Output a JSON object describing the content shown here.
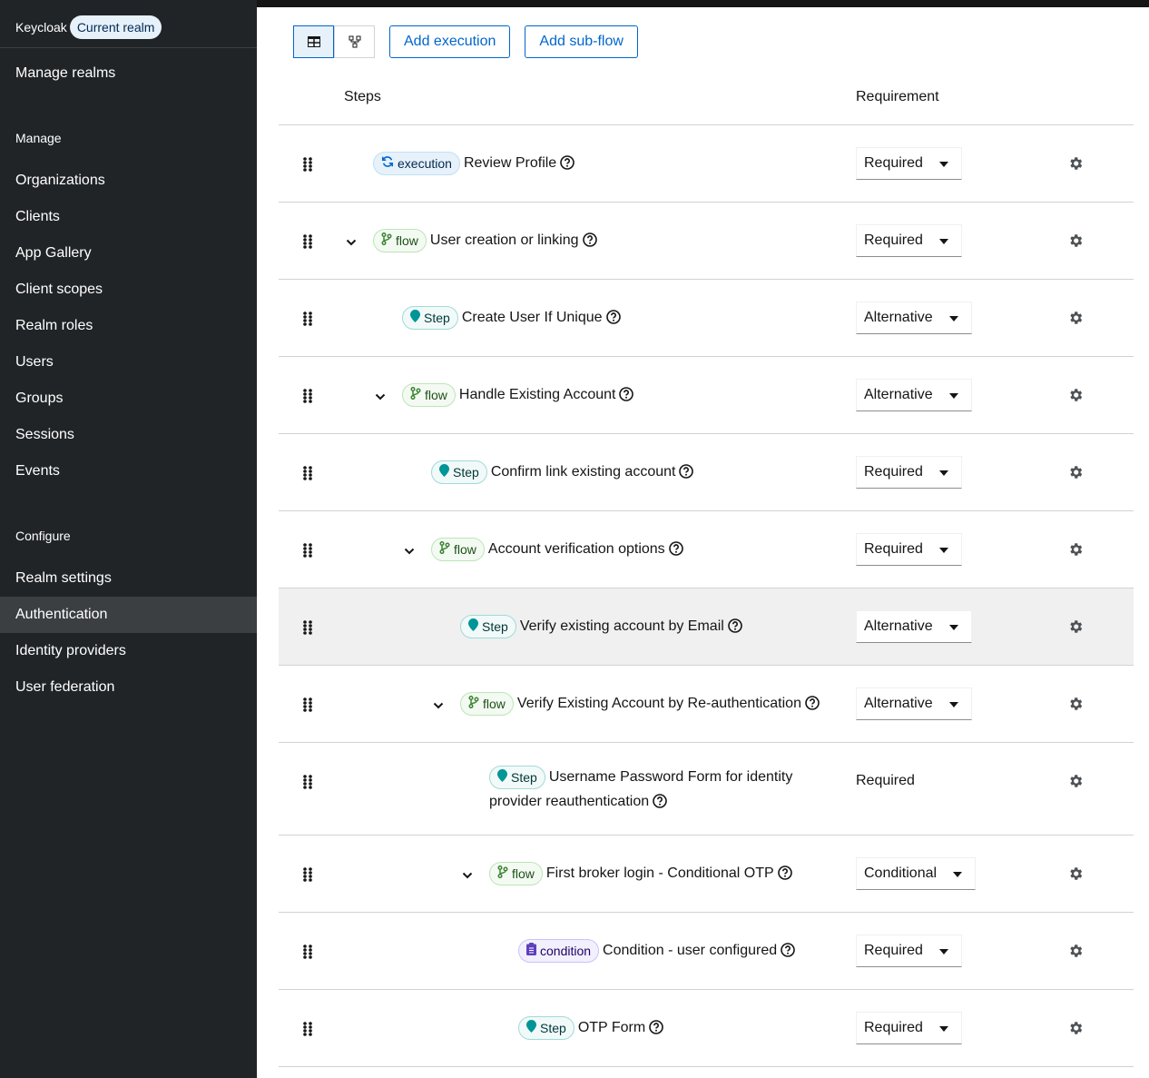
{
  "sidebar": {
    "brand": "Keycloak",
    "realm_badge": "Current realm",
    "top_link": "Manage realms",
    "sections": [
      {
        "title": "Manage",
        "items": [
          {
            "label": "Organizations"
          },
          {
            "label": "Clients"
          },
          {
            "label": "App Gallery"
          },
          {
            "label": "Client scopes"
          },
          {
            "label": "Realm roles"
          },
          {
            "label": "Users"
          },
          {
            "label": "Groups"
          },
          {
            "label": "Sessions"
          },
          {
            "label": "Events"
          }
        ]
      },
      {
        "title": "Configure",
        "items": [
          {
            "label": "Realm settings"
          },
          {
            "label": "Authentication",
            "selected": true
          },
          {
            "label": "Identity providers"
          },
          {
            "label": "User federation"
          }
        ]
      }
    ]
  },
  "toolbar": {
    "buttons": [
      "Add execution",
      "Add sub-flow"
    ]
  },
  "badge_styles": {
    "execution": {
      "bg": "#e7f1fa",
      "border": "#bee1f4",
      "text": "#002952",
      "icon_color": "#0066cc",
      "icon": "sync"
    },
    "flow": {
      "bg": "#f3faf2",
      "border": "#bde5b8",
      "text": "#1e4f18",
      "icon_color": "#3e8635",
      "icon": "branch"
    },
    "Step": {
      "bg": "#f2f9f9",
      "border": "#a2d9d9",
      "text": "#003737",
      "icon_color": "#009596",
      "icon": "pin"
    },
    "condition": {
      "bg": "#f2f0fc",
      "border": "#cbc1ff",
      "text": "#1f0066",
      "icon_color": "#5e40be",
      "icon": "clipboard"
    }
  },
  "table": {
    "headers": [
      "Steps",
      "Requirement"
    ],
    "rows": [
      {
        "badge": "execution",
        "name": "Review Profile",
        "depth": 0,
        "expandable": false,
        "requirement": "Required",
        "dropdown": true
      },
      {
        "badge": "flow",
        "name": "User creation or linking",
        "depth": 0,
        "expandable": true,
        "requirement": "Required",
        "dropdown": true
      },
      {
        "badge": "Step",
        "name": "Create User If Unique",
        "depth": 1,
        "expandable": false,
        "requirement": "Alternative",
        "dropdown": true
      },
      {
        "badge": "flow",
        "name": "Handle Existing Account",
        "depth": 1,
        "expandable": true,
        "requirement": "Alternative",
        "dropdown": true
      },
      {
        "badge": "Step",
        "name": "Confirm link existing account",
        "depth": 2,
        "expandable": false,
        "requirement": "Required",
        "dropdown": true
      },
      {
        "badge": "flow",
        "name": "Account verification options",
        "depth": 2,
        "expandable": true,
        "requirement": "Required",
        "dropdown": true
      },
      {
        "badge": "Step",
        "name": "Verify existing account by Email",
        "depth": 3,
        "expandable": false,
        "requirement": "Alternative",
        "dropdown": true,
        "highlighted": true
      },
      {
        "badge": "flow",
        "name": "Verify Existing Account by Re-authentication",
        "depth": 3,
        "expandable": true,
        "requirement": "Alternative",
        "dropdown": true
      },
      {
        "badge": "Step",
        "name": "Username Password Form for identity provider reauthentication",
        "depth": 4,
        "expandable": false,
        "requirement": "Required",
        "dropdown": false
      },
      {
        "badge": "flow",
        "name": "First broker login - Conditional OTP",
        "depth": 4,
        "expandable": true,
        "requirement": "Conditional",
        "dropdown": true
      },
      {
        "badge": "condition",
        "name": "Condition - user configured",
        "depth": 5,
        "expandable": false,
        "requirement": "Required",
        "dropdown": true
      },
      {
        "badge": "Step",
        "name": "OTP Form",
        "depth": 5,
        "expandable": false,
        "requirement": "Required",
        "dropdown": true
      }
    ]
  }
}
